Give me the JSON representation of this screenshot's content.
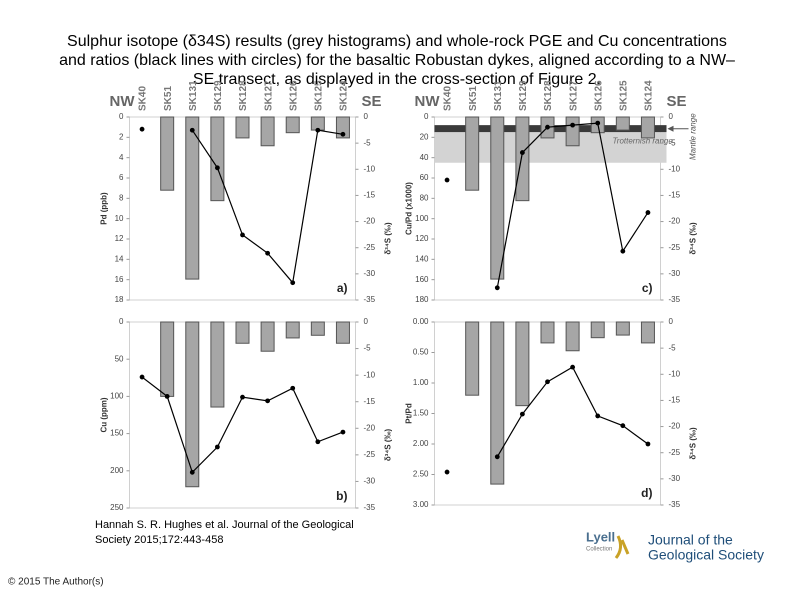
{
  "title": [
    "Sulphur isotope (δ34S) results (grey histograms) and whole-rock PGE and Cu concentrations",
    "and ratios (black lines with circles) for the basaltic Robustan dykes, aligned according to a NW–",
    "SE transect, as displayed in the cross-section of Figure 2."
  ],
  "citation": [
    "Hannah S. R. Hughes et al. Journal of the Geological",
    "Society 2015;172:443-458"
  ],
  "copyright": "© 2015 The Author(s)",
  "logo": {
    "name": "Lyell",
    "sub": "Collection",
    "journal": [
      "Journal of the",
      "Geological Society"
    ]
  },
  "chart_data": [
    {
      "type": "combo",
      "panel_label": "a)",
      "ylabel": "Pd (ppb)",
      "y2label": "δ³⁴S (‰)",
      "direction": [
        "NW",
        "SE"
      ],
      "categories": [
        "SK40",
        "SK51",
        "SK131",
        "SK129",
        "SK128",
        "SK127",
        "SK126",
        "SK125",
        "SK124"
      ],
      "ylim": [
        0,
        18
      ],
      "y_inverted": true,
      "yticks": [
        0,
        2,
        4,
        6,
        8,
        10,
        12,
        14,
        16,
        18
      ],
      "y2lim": [
        -35,
        0
      ],
      "y2ticks": [
        0,
        -5,
        -10,
        -15,
        -20,
        -25,
        -30,
        -35
      ],
      "series": [
        {
          "type": "bar",
          "axis": "y2",
          "color": "#a6a6a6",
          "values": [
            null,
            -14,
            -31,
            -16,
            -4,
            -5.5,
            -3,
            -2.5,
            -4
          ]
        },
        {
          "type": "line",
          "color": "#000000",
          "values": [
            1.2,
            null,
            1.3,
            5.0,
            11.6,
            13.4,
            16.3,
            1.3,
            1.7
          ]
        }
      ]
    },
    {
      "type": "combo",
      "panel_label": "b)",
      "ylabel": "Cu (ppm)",
      "y2label": "δ³⁴S (‰)",
      "ylim": [
        0,
        250
      ],
      "y_inverted": true,
      "yticks": [
        0,
        50,
        100,
        150,
        200,
        250
      ],
      "y2lim": [
        -35,
        0
      ],
      "y2ticks": [
        0,
        -5,
        -10,
        -15,
        -20,
        -25,
        -30,
        -35
      ],
      "series": [
        {
          "type": "bar",
          "axis": "y2",
          "color": "#a6a6a6",
          "values": [
            null,
            -14,
            -31,
            -16,
            -4,
            -5.5,
            -3,
            -2.5,
            -4
          ]
        },
        {
          "type": "line",
          "color": "#000000",
          "values": [
            74,
            100,
            202,
            168,
            101,
            106,
            89,
            161,
            148
          ]
        }
      ]
    },
    {
      "type": "combo",
      "panel_label": "c)",
      "ylabel": "Cu/Pd (x1000)",
      "y2label": "δ³⁴S (‰)",
      "direction": [
        "NW",
        "SE"
      ],
      "categories": [
        "SK40",
        "SK51",
        "SK131",
        "SK129",
        "SK128",
        "SK127",
        "SK126",
        "SK125",
        "SK124"
      ],
      "ylim": [
        0,
        180
      ],
      "y_inverted": true,
      "yticks": [
        0,
        20,
        40,
        60,
        80,
        100,
        120,
        140,
        160,
        180
      ],
      "y2lim": [
        -35,
        0
      ],
      "y2ticks": [
        0,
        -5,
        -10,
        -15,
        -20,
        -25,
        -30,
        -35
      ],
      "bands": [
        {
          "label": "Mantle range",
          "range": [
            8,
            15
          ],
          "color": "#3a3a3a"
        },
        {
          "label": "Trotternish range",
          "range": [
            15,
            45
          ],
          "color": "#d3d3d3"
        }
      ],
      "series": [
        {
          "type": "bar",
          "axis": "y2",
          "color": "#a6a6a6",
          "values": [
            null,
            -14,
            -31,
            -16,
            -4,
            -5.5,
            -3,
            -2.5,
            -4
          ]
        },
        {
          "type": "line",
          "color": "#000000",
          "values": [
            62,
            null,
            168,
            35,
            10,
            8,
            6,
            132,
            94
          ]
        }
      ]
    },
    {
      "type": "combo",
      "panel_label": "d)",
      "ylabel": "Pt/Pd",
      "y2label": "δ³⁴S (‰)",
      "ylim": [
        0,
        3
      ],
      "y_inverted": true,
      "yticks": [
        {
          "value": 0,
          "label": "0.00"
        },
        {
          "value": 0.5,
          "label": "0.50"
        },
        {
          "value": 1,
          "label": "1.00"
        },
        {
          "value": 1.5,
          "label": "1.50"
        },
        {
          "value": 2,
          "label": "2.00"
        },
        {
          "value": 2.5,
          "label": "2.50"
        },
        {
          "value": 3,
          "label": "3.00"
        }
      ],
      "y2lim": [
        -35,
        0
      ],
      "y2ticks": [
        0,
        -5,
        -10,
        -15,
        -20,
        -25,
        -30,
        -35
      ],
      "series": [
        {
          "type": "bar",
          "axis": "y2",
          "color": "#a6a6a6",
          "values": [
            null,
            -14,
            -31,
            -16,
            -4,
            -5.5,
            -3,
            -2.5,
            -4
          ]
        },
        {
          "type": "line",
          "color": "#000000",
          "values": [
            2.46,
            null,
            2.21,
            1.51,
            0.98,
            0.74,
            1.54,
            1.7,
            2.0
          ]
        }
      ]
    }
  ]
}
